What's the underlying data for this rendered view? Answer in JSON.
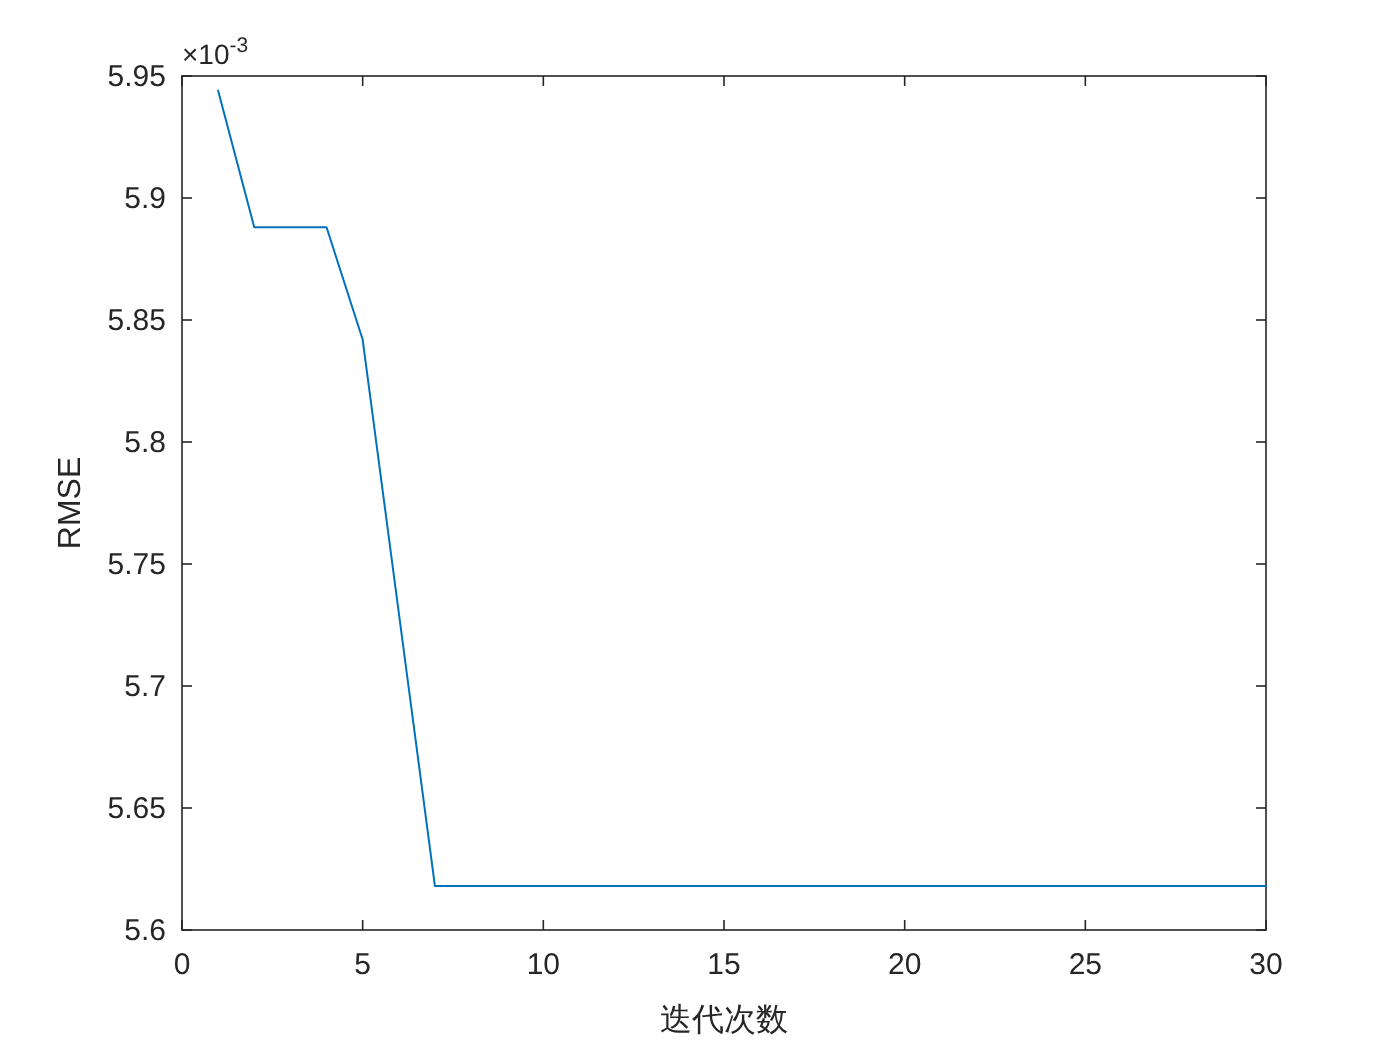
{
  "chart_data": {
    "type": "line",
    "xlabel": "迭代次数",
    "ylabel": "RMSE",
    "annotations": [
      "×10$^{-3}$"
    ],
    "x": [
      1,
      2,
      3,
      4,
      5,
      6,
      7,
      8,
      9,
      10,
      11,
      12,
      13,
      14,
      15,
      16,
      17,
      18,
      19,
      20,
      21,
      22,
      23,
      24,
      25,
      26,
      27,
      28,
      29,
      30
    ],
    "series": [
      {
        "color": "#0072bd",
        "values": [
          5.944,
          5.888,
          5.888,
          5.888,
          5.842,
          5.73,
          5.618,
          5.618,
          5.618,
          5.618,
          5.618,
          5.618,
          5.618,
          5.618,
          5.618,
          5.618,
          5.618,
          5.618,
          5.618,
          5.618,
          5.618,
          5.618,
          5.618,
          5.618,
          5.618,
          5.618,
          5.618,
          5.618,
          5.618,
          5.618
        ]
      }
    ],
    "xlim": [
      0,
      30
    ],
    "ylim": [
      5.6,
      5.95
    ],
    "xticks": [
      0,
      5,
      10,
      15,
      20,
      25,
      30
    ],
    "yticks": [
      5.6,
      5.65,
      5.7,
      5.75,
      5.8,
      5.85,
      5.9,
      5.95
    ],
    "line_style": "solid",
    "marker": "none"
  }
}
